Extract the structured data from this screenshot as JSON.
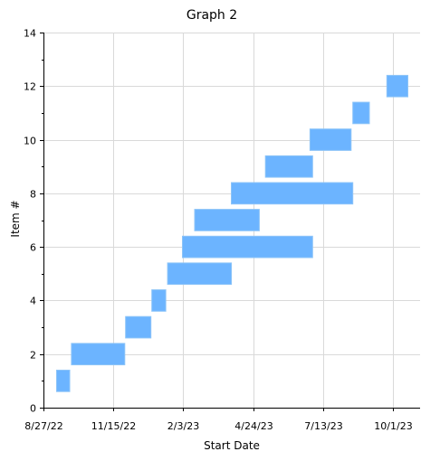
{
  "chart_data": {
    "type": "bar",
    "orientation": "horizontal-range",
    "title": "Graph 2",
    "xlabel": "Start Date",
    "ylabel": "Item #",
    "grid": true,
    "legend": "none",
    "bar_color": "#6cb4ff",
    "bar_edge_color": "#8cc4f8",
    "x_axis": {
      "type": "date",
      "range": [
        "2022-08-27",
        "2023-11-01"
      ],
      "ticks": [
        {
          "value": "2022-08-27",
          "label": "8/27/22"
        },
        {
          "value": "2022-11-15",
          "label": "11/15/22"
        },
        {
          "value": "2023-02-03",
          "label": "2/3/23"
        },
        {
          "value": "2023-04-24",
          "label": "4/24/23"
        },
        {
          "value": "2023-07-13",
          "label": "7/13/23"
        },
        {
          "value": "2023-10-01",
          "label": "10/1/23"
        }
      ]
    },
    "y_axis": {
      "range": [
        0,
        14
      ],
      "ticks": [
        0,
        2,
        4,
        6,
        8,
        10,
        12,
        14
      ],
      "minor_ticks": [
        1,
        3,
        5,
        7,
        9,
        11,
        13
      ]
    },
    "tasks": [
      {
        "item": 1,
        "start": "2022-09-11",
        "end": "2022-09-26"
      },
      {
        "item": 2,
        "start": "2022-09-28",
        "end": "2022-11-28"
      },
      {
        "item": 3,
        "start": "2022-11-29",
        "end": "2022-12-28"
      },
      {
        "item": 4,
        "start": "2022-12-29",
        "end": "2023-01-14"
      },
      {
        "item": 5,
        "start": "2023-01-16",
        "end": "2023-03-30"
      },
      {
        "item": 6,
        "start": "2023-02-02",
        "end": "2023-07-01"
      },
      {
        "item": 7,
        "start": "2023-02-16",
        "end": "2023-05-01"
      },
      {
        "item": 8,
        "start": "2023-03-30",
        "end": "2023-08-16"
      },
      {
        "item": 9,
        "start": "2023-05-08",
        "end": "2023-07-01"
      },
      {
        "item": 10,
        "start": "2023-06-28",
        "end": "2023-08-14"
      },
      {
        "item": 11,
        "start": "2023-08-16",
        "end": "2023-09-04"
      },
      {
        "item": 12,
        "start": "2023-09-24",
        "end": "2023-10-18"
      }
    ]
  }
}
